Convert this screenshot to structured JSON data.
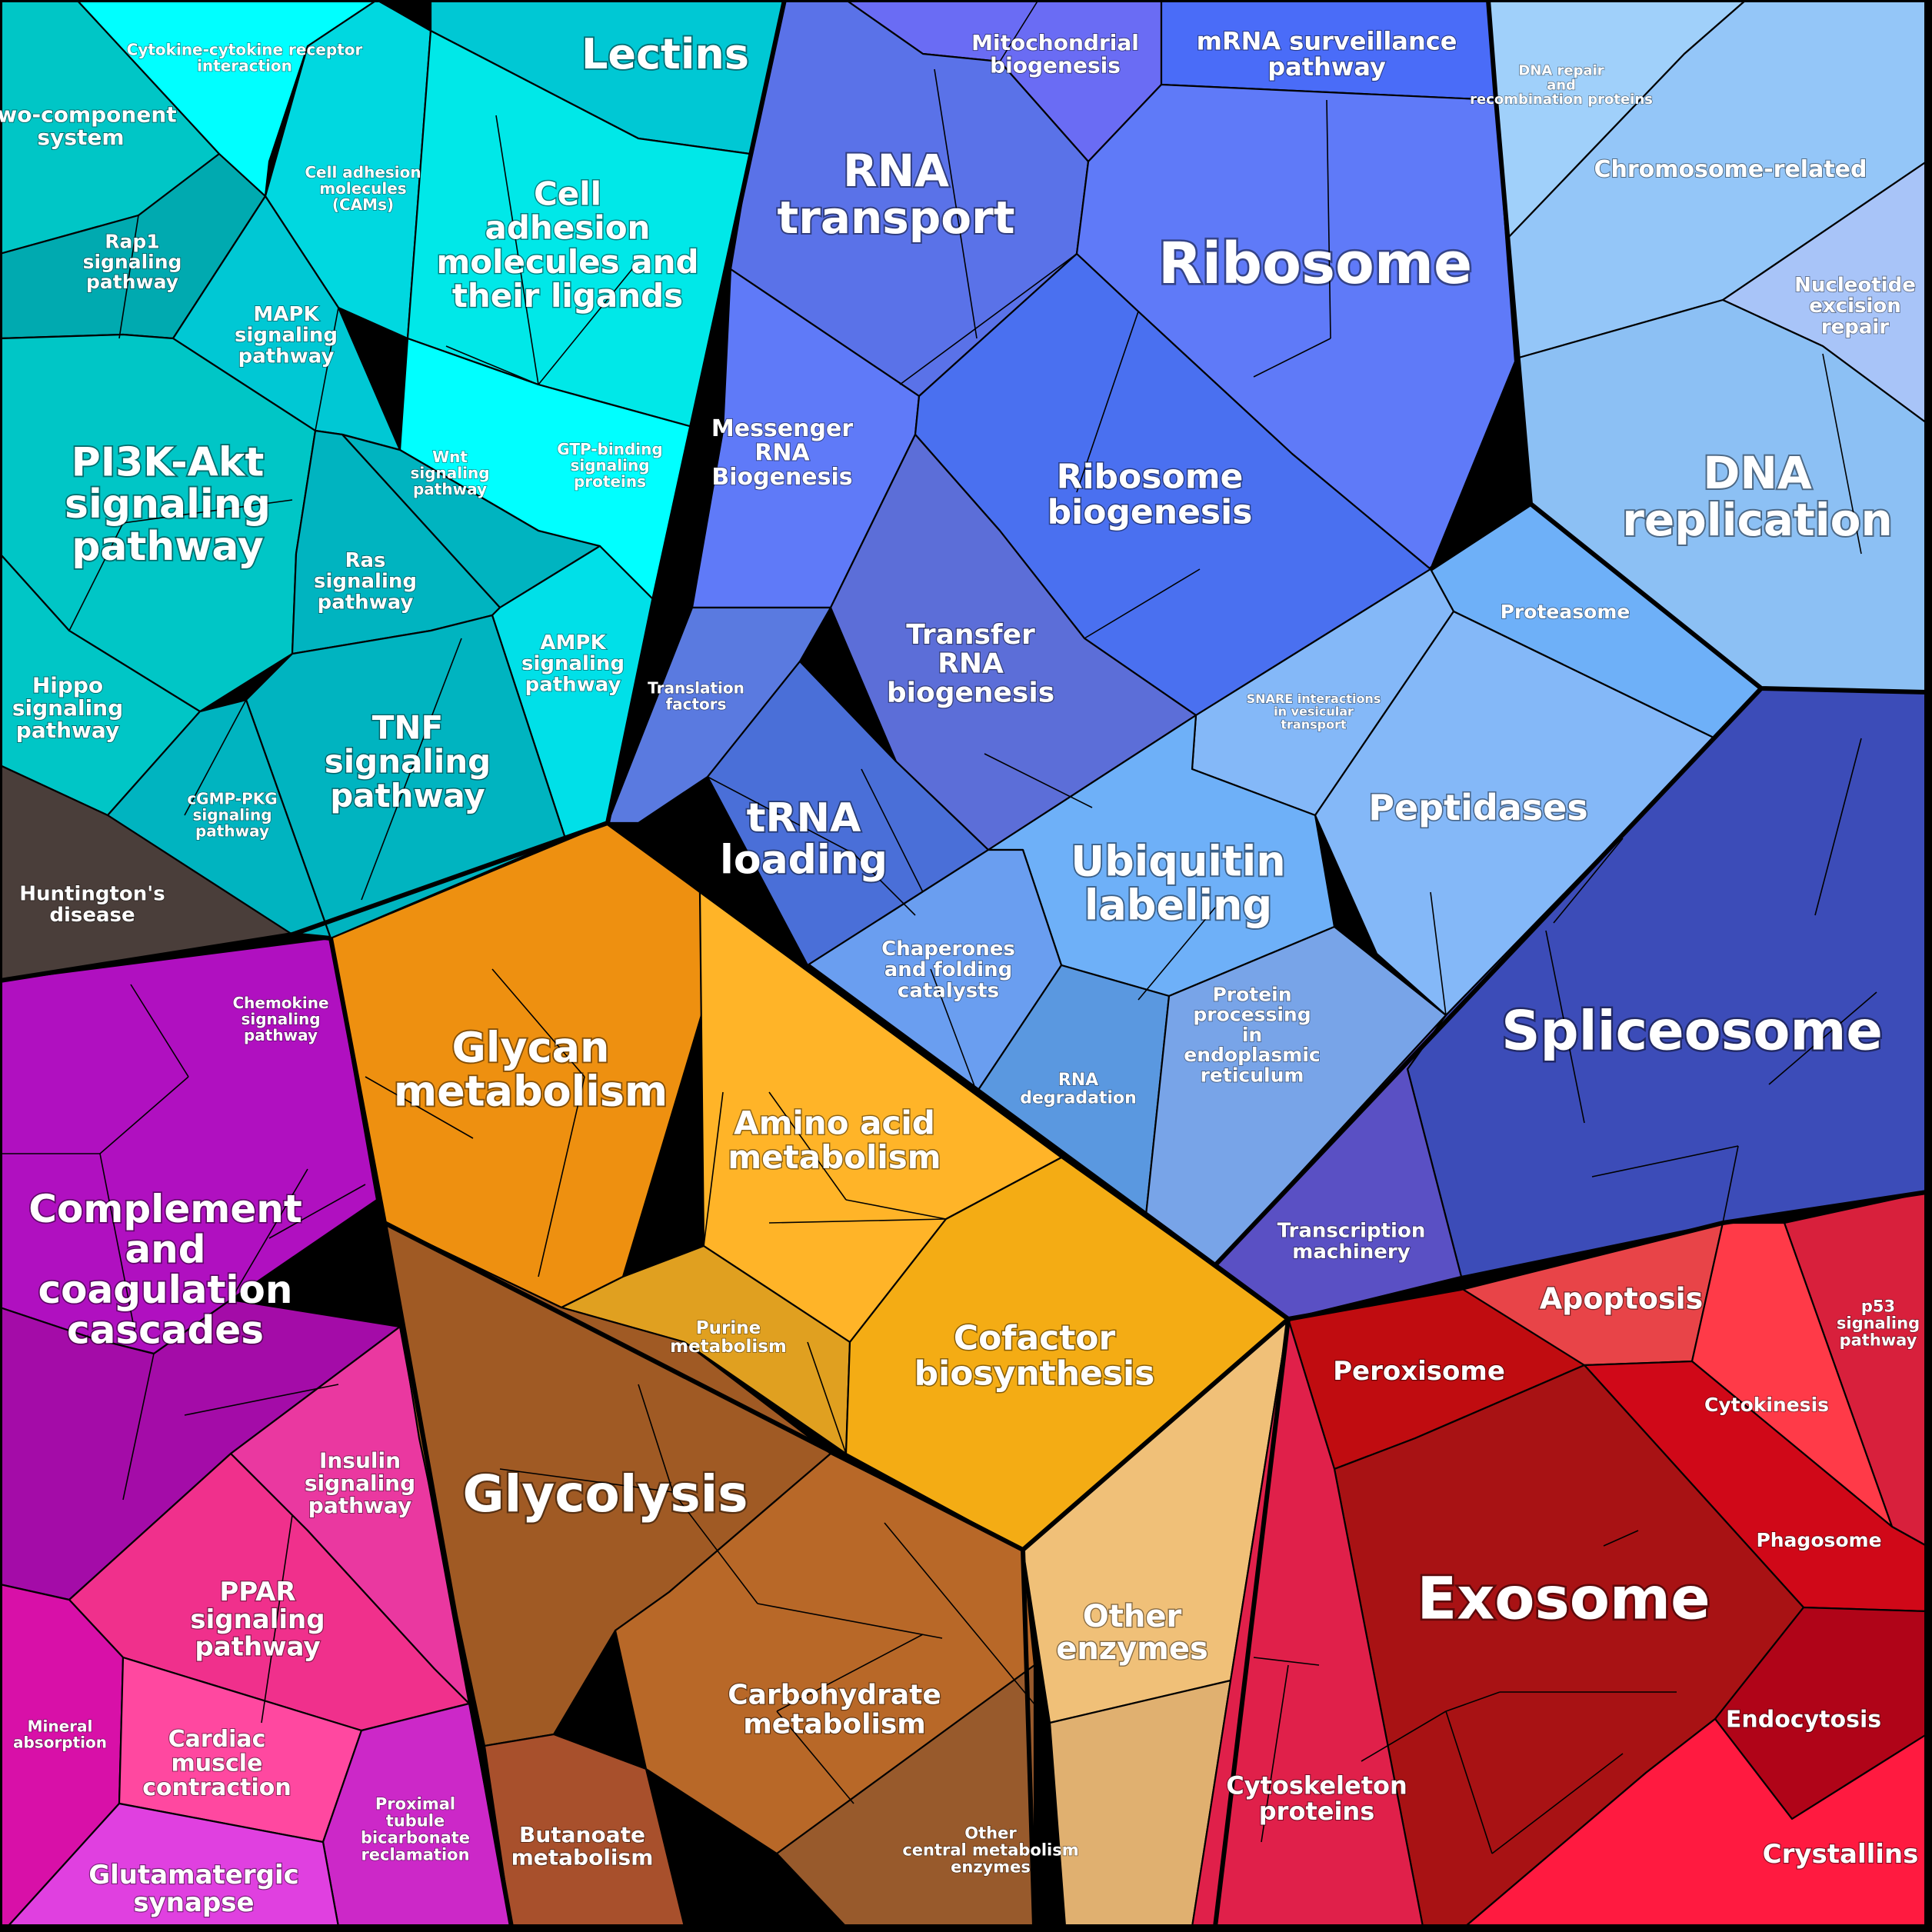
{
  "groups": [
    {
      "id": "signaling",
      "color": "#00ced8",
      "labels": [
        "Lectins",
        "Cytokine-cytokine receptor interaction",
        "Two-component system",
        "Cell adhesion molecules (CAMs)",
        "Cell adhesion molecules and their ligands",
        "Rap1 signaling pathway",
        "MAPK signaling pathway",
        "PI3K-Akt signaling pathway",
        "Wnt signaling pathway",
        "GTP-binding signaling proteins",
        "Ras signaling pathway",
        "AMPK signaling pathway",
        "Hippo signaling pathway",
        "TNF signaling pathway",
        "cGMP-PKG signaling pathway"
      ]
    },
    {
      "id": "genetic-info",
      "color": "#5c74f0",
      "labels": [
        "Mitochondrial biogenesis",
        "mRNA surveillance pathway",
        "RNA transport",
        "Ribosome",
        "Messenger RNA Biogenesis",
        "Ribosome biogenesis",
        "Transfer RNA biogenesis",
        "Translation factors",
        "tRNA loading"
      ]
    },
    {
      "id": "dna",
      "color": "#90c4f8",
      "labels": [
        "DNA repair and recombination proteins",
        "Chromosome-related",
        "Nucleotide excision repair",
        "DNA replication"
      ]
    },
    {
      "id": "protein-processing",
      "color": "#6aa4f4",
      "labels": [
        "Proteasome",
        "SNARE interactions in vesicular transport",
        "Peptidases",
        "Ubiquitin labeling",
        "Chaperones and folding catalysts",
        "RNA degradation",
        "Protein processing in endoplasmic reticulum"
      ]
    },
    {
      "id": "spliceosome",
      "color": "#3f52c0",
      "labels": [
        "Spliceosome",
        "Transcription machinery"
      ]
    },
    {
      "id": "disease",
      "color": "#4a3e3a",
      "labels": [
        "Huntington's disease"
      ]
    },
    {
      "id": "immune",
      "color": "#b015c0",
      "labels": [
        "Chemokine signaling pathway",
        "Complement and coagulation cascades",
        "Insulin signaling pathway",
        "PPAR signaling pathway",
        "Mineral absorption",
        "Cardiac muscle contraction",
        "Proximal tubule bicarbonate reclamation",
        "Glutamatergic synapse"
      ]
    },
    {
      "id": "metabolism",
      "color": "#f4a21a",
      "labels": [
        "Glycan metabolism",
        "Amino acid metabolism",
        "Purine metabolism",
        "Cofactor biosynthesis",
        "Other enzymes"
      ]
    },
    {
      "id": "carbohydrate",
      "color": "#b0602a",
      "labels": [
        "Glycolysis",
        "Carbohydrate metabolism",
        "Butanoate metabolism",
        "Other central metabolism enzymes"
      ]
    },
    {
      "id": "cellular",
      "color": "#c01020",
      "labels": [
        "Apoptosis",
        "p53 signaling pathway",
        "Peroxisome",
        "Cytokinesis",
        "Phagosome",
        "Exosome",
        "Endocytosis",
        "Cytoskeleton proteins",
        "Crystallins"
      ]
    }
  ],
  "labels": {
    "lectins": "Lectins",
    "cytokine": "Cytokine-cytokine receptor interaction",
    "two_component": "Two-component system",
    "cams": "Cell adhesion molecules (CAMs)",
    "cell_adhesion": "Cell adhesion molecules and their ligands",
    "rap1": "Rap1 signaling pathway",
    "mapk": "MAPK signaling pathway",
    "pi3k": "PI3K-Akt signaling pathway",
    "wnt": "Wnt signaling pathway",
    "gtp": "GTP-binding signaling proteins",
    "ras": "Ras signaling pathway",
    "ampk": "AMPK signaling pathway",
    "hippo": "Hippo signaling pathway",
    "tnf": "TNF signaling pathway",
    "cgmp": "cGMP-PKG signaling pathway",
    "huntington": "Huntington's disease",
    "mito": "Mitochondrial biogenesis",
    "mrna_surv": "mRNA surveillance pathway",
    "rna_transport": "RNA transport",
    "ribosome": "Ribosome",
    "messenger": "Messenger RNA Biogenesis",
    "ribosome_bio": "Ribosome biogenesis",
    "trna_bio": "Transfer RNA biogenesis",
    "translation": "Translation factors",
    "trna_loading": "tRNA loading",
    "dna_repair": "DNA repair and recombination proteins",
    "chromosome": "Chromosome-related",
    "nucleotide": "Nucleotide excision repair",
    "dna_rep": "DNA replication",
    "proteasome": "Proteasome",
    "snare": "SNARE interactions in vesicular transport",
    "peptidases": "Peptidases",
    "ubiquitin": "Ubiquitin labeling",
    "chaperones": "Chaperones and folding catalysts",
    "rna_deg": "RNA degradation",
    "protein_er": "Protein processing in endoplasmic reticulum",
    "spliceosome": "Spliceosome",
    "transcription": "Transcription machinery",
    "chemokine": "Chemokine signaling pathway",
    "complement": "Complement and coagulation cascades",
    "insulin": "Insulin signaling pathway",
    "ppar": "PPAR signaling pathway",
    "mineral": "Mineral absorption",
    "cardiac": "Cardiac muscle contraction",
    "proximal": "Proximal tubule bicarbonate reclamation",
    "glutamatergic": "Glutamatergic synapse",
    "glycan": "Glycan metabolism",
    "amino": "Amino acid metabolism",
    "purine": "Purine metabolism",
    "cofactor": "Cofactor biosynthesis",
    "other_enz": "Other enzymes",
    "glycolysis": "Glycolysis",
    "carbohydrate": "Carbohydrate metabolism",
    "butanoate": "Butanoate metabolism",
    "other_central": "Other central metabolism enzymes",
    "apoptosis": "Apoptosis",
    "p53": "p53 signaling pathway",
    "peroxisome": "Peroxisome",
    "cytokinesis": "Cytokinesis",
    "phagosome": "Phagosome",
    "exosome": "Exosome",
    "endocytosis": "Endocytosis",
    "cytoskeleton": "Cytoskeleton proteins",
    "crystallins": "Crystallins"
  }
}
